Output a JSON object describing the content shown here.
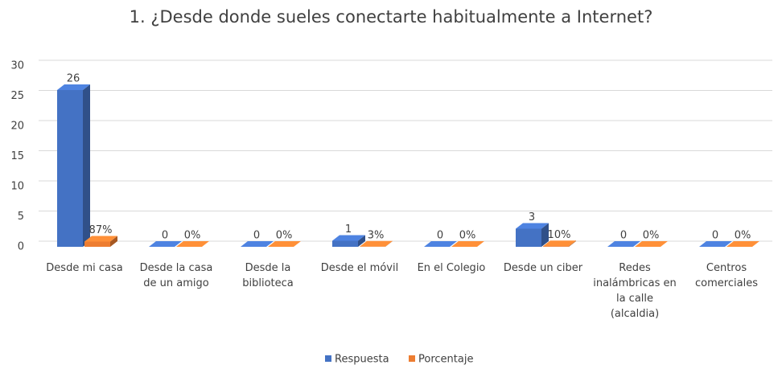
{
  "chart_data": {
    "type": "bar3d",
    "title": "1. ¿Desde donde sueles conectarte habitualmente  a Internet?",
    "categories": [
      "Desde mi casa",
      "Desde la casa de un amigo",
      "Desde la biblioteca",
      "Desde el móvil",
      "En el Colegio",
      "Desde un ciber",
      "Redes inalámbricas en la calle (alcaldia)",
      "Centros comerciales"
    ],
    "series": [
      {
        "name": "Respuesta",
        "color": "#4472c4",
        "values": [
          26,
          0,
          0,
          1,
          0,
          3,
          0,
          0
        ]
      },
      {
        "name": "Porcentaje",
        "color": "#ed7d31",
        "values": [
          0.87,
          0,
          0,
          0.03,
          0,
          0.1,
          0,
          0
        ],
        "value_labels": [
          "87%",
          "0%",
          "0%",
          "3%",
          "0%",
          "10%",
          "0%",
          "0%"
        ]
      }
    ],
    "ylim": [
      0,
      30
    ],
    "yticks": [
      0,
      5,
      10,
      15,
      20,
      25,
      30
    ],
    "grid": true,
    "legend": "bottom"
  }
}
